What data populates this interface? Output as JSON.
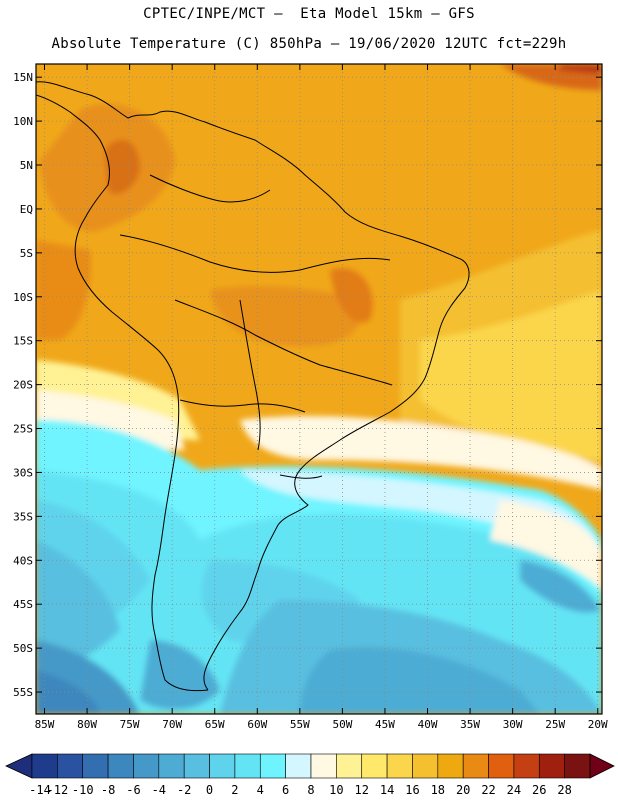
{
  "header": {
    "line1": "CPTEC/INPE/MCT –  Eta Model 15km – GFS",
    "line2": "Absolute Temperature (C) 850hPa – 19/06/2020 12UTC fct=229h"
  },
  "map": {
    "lat_labels": [
      "15N",
      "10N",
      "5N",
      "EQ",
      "5S",
      "10S",
      "15S",
      "20S",
      "25S",
      "30S",
      "35S",
      "40S",
      "45S",
      "50S",
      "55S"
    ],
    "lon_labels": [
      "85W",
      "80W",
      "75W",
      "70W",
      "65W",
      "60W",
      "55W",
      "50W",
      "45W",
      "40W",
      "35W",
      "30W",
      "25W",
      "20W"
    ],
    "lat_range": [
      -57.5,
      16.5
    ],
    "lon_range": [
      -86,
      -19.5
    ]
  },
  "colorbar": {
    "labels": [
      "-14",
      "-12",
      "-10",
      "-8",
      "-6",
      "-4",
      "-2",
      "0",
      "2",
      "4",
      "6",
      "8",
      "10",
      "12",
      "14",
      "16",
      "18",
      "20",
      "22",
      "24",
      "26",
      "28"
    ],
    "colors": [
      "#1f3c8c",
      "#2a52a0",
      "#336fb0",
      "#3c87be",
      "#4599c8",
      "#4eacd4",
      "#58bfe0",
      "#5fd3ec",
      "#63e4f4",
      "#6ff4ff",
      "#d4f6ff",
      "#fff8e2",
      "#fff294",
      "#ffe86a",
      "#fbd64c",
      "#f4c030",
      "#eea810",
      "#e88a14",
      "#e06010",
      "#c44012",
      "#a02010",
      "#7a1212"
    ],
    "left_arrow_color": "#1e2e7a",
    "right_arrow_color": "#700018"
  }
}
